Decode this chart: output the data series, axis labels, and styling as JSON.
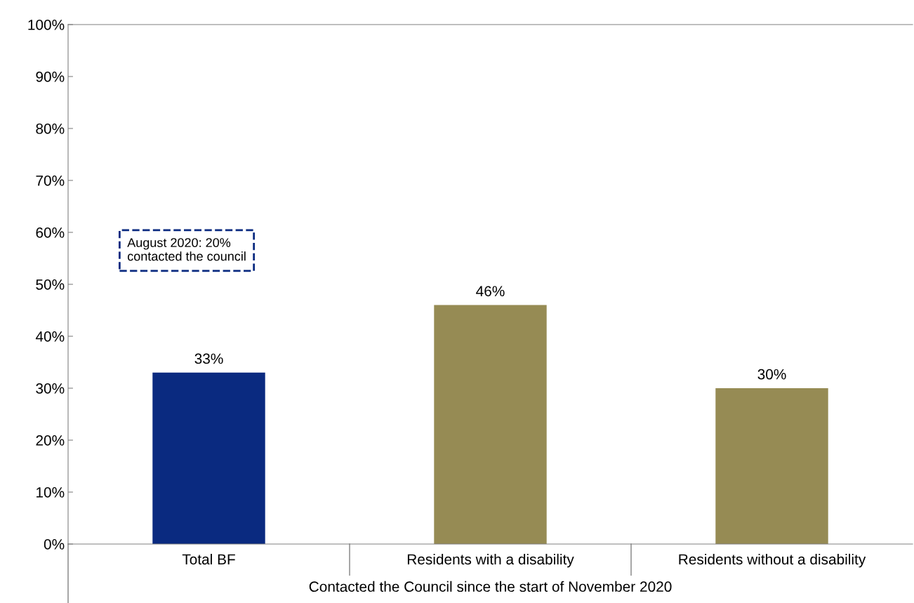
{
  "chart_data": {
    "type": "bar",
    "categories": [
      "Total BF",
      "Residents with a disability",
      "Residents without a disability"
    ],
    "values": [
      33,
      46,
      30
    ],
    "colors": [
      "#0a2a80",
      "#968b54",
      "#968b54"
    ],
    "xlabel": "Contacted the Council since the start of November 2020",
    "ylim": [
      0,
      100
    ],
    "yticks": [
      {
        "value": 0,
        "label": "0%"
      },
      {
        "value": 10,
        "label": "10%"
      },
      {
        "value": 20,
        "label": "20%"
      },
      {
        "value": 30,
        "label": "30%"
      },
      {
        "value": 40,
        "label": "40%"
      },
      {
        "value": 50,
        "label": "50%"
      },
      {
        "value": 60,
        "label": "60%"
      },
      {
        "value": 70,
        "label": "70%"
      },
      {
        "value": 80,
        "label": "80%"
      },
      {
        "value": 90,
        "label": "90%"
      },
      {
        "value": 100,
        "label": "100%"
      }
    ],
    "value_labels": [
      "33%",
      "46%",
      "30%"
    ],
    "annotations": [
      "August 2020: 20%\ncontacted the council"
    ],
    "grid": false,
    "legend": false
  }
}
